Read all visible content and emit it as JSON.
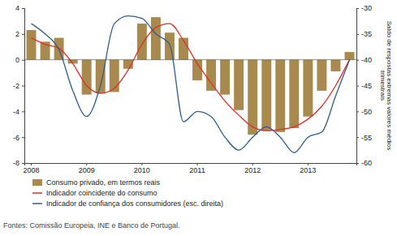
{
  "chart_data": {
    "type": "bar",
    "categories": [
      "2008",
      null,
      null,
      null,
      "2009",
      null,
      null,
      null,
      "2010",
      null,
      null,
      null,
      "2011",
      null,
      null,
      null,
      "2012",
      null,
      null,
      null,
      "2013",
      null,
      null,
      null
    ],
    "ylim": [
      -8,
      4
    ],
    "yticks": [
      -8,
      -6,
      -4,
      -2,
      0,
      2,
      4
    ],
    "y2lim": [
      -60,
      -30
    ],
    "y2ticks": [
      -60,
      -55,
      -50,
      -45,
      -40,
      -35,
      -30
    ],
    "y2label": [
      "Saldo de respostas extremas valores médios",
      "trimestrais"
    ],
    "source": "Fontes: Comissão Europeia, INE e Banco de Portugal.",
    "series": [
      {
        "name": "Consumo privado, em termos reais",
        "type": "bar",
        "color": "#a88a4e",
        "values": [
          2.3,
          1.4,
          1.7,
          -0.3,
          -2.7,
          -2.6,
          -2.5,
          -0.7,
          2.8,
          3.3,
          2.1,
          1.7,
          -1.6,
          -2.4,
          -2.7,
          -3.9,
          -5.8,
          -5.5,
          -5.6,
          -5.3,
          -4.4,
          -2.4,
          -0.9,
          0.6
        ]
      },
      {
        "name": "Indicador coincidente do consumo",
        "type": "line",
        "color": "#e0302a",
        "values": [
          1.7,
          1.2,
          0.9,
          -0.3,
          -2.0,
          -2.6,
          -2.2,
          -0.8,
          1.2,
          2.5,
          2.8,
          1.5,
          -0.3,
          -1.8,
          -3.2,
          -4.3,
          -5.2,
          -5.5,
          -5.4,
          -5.2,
          -4.6,
          -3.6,
          -2.0,
          0.0
        ]
      },
      {
        "name": "Indicador de confiança dos consumidores (esc. direita)",
        "type": "line",
        "color": "#2f5f8a",
        "axis": "y2",
        "values": [
          -33,
          -35,
          -38,
          -46,
          -51,
          -45,
          -33,
          -31.5,
          -32,
          -35,
          -37,
          -52,
          -50,
          -51,
          -55,
          -57.5,
          -55,
          -53,
          -55,
          -58,
          -55,
          -54,
          -47,
          -40
        ]
      }
    ]
  }
}
